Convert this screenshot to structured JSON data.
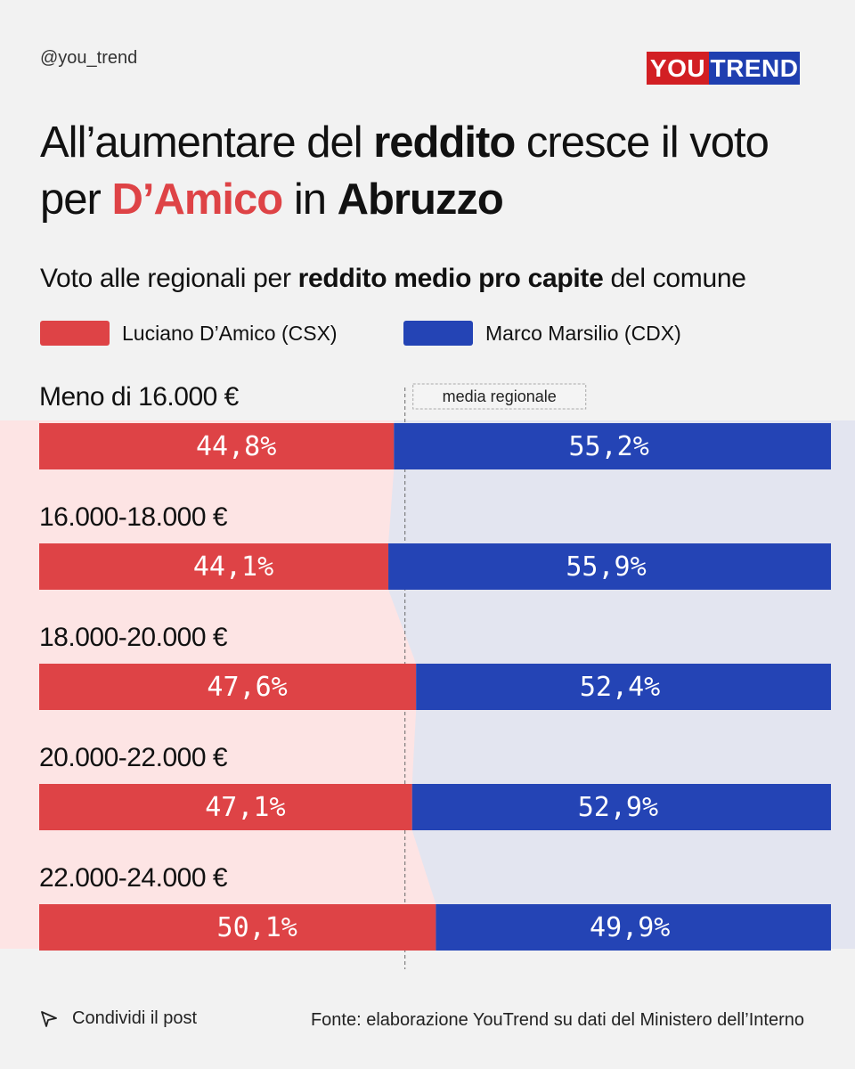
{
  "header": {
    "handle": "@you_trend",
    "logo_part1": "YOU",
    "logo_part2": "TREND"
  },
  "title": {
    "t1": "All’aumentare del ",
    "t2": "reddito",
    "t3": " cresce il voto per ",
    "t4": "D’Amico",
    "t5": " in ",
    "t6": "Abruzzo"
  },
  "subtitle": {
    "s1": "Voto alle regionali per ",
    "s2": "reddito medio pro capite",
    "s3": " del comune"
  },
  "colors": {
    "csx": "#de4346",
    "cdx": "#2444b5",
    "csx_bg": "#fde4e4",
    "cdx_bg": "#e3e5f0",
    "background": "#f2f2f2"
  },
  "chart_data": {
    "type": "bar",
    "stacked": true,
    "orientation": "horizontal",
    "categories": [
      "Meno di 16.000 €",
      "16.000-18.000 €",
      "18.000-20.000 €",
      "20.000-22.000 €",
      "22.000-24.000 €"
    ],
    "series": [
      {
        "name": "Luciano D’Amico (CSX)",
        "values": [
          44.8,
          44.1,
          47.6,
          47.1,
          50.1
        ],
        "labels": [
          "44,8%",
          "44,1%",
          "47,6%",
          "47,1%",
          "50,1%"
        ]
      },
      {
        "name": "Marco Marsilio (CDX)",
        "values": [
          55.2,
          55.9,
          52.4,
          52.9,
          49.9
        ],
        "labels": [
          "55,2%",
          "55,9%",
          "52,4%",
          "52,9%",
          "49,9%"
        ]
      }
    ],
    "reference_line": {
      "label": "media regionale",
      "value": 46.2
    },
    "xlim": [
      0,
      100
    ],
    "legend": "top"
  },
  "footer": {
    "share": "Condividi il post",
    "source": "Fonte: elaborazione YouTrend su dati del Ministero dell’Interno"
  }
}
